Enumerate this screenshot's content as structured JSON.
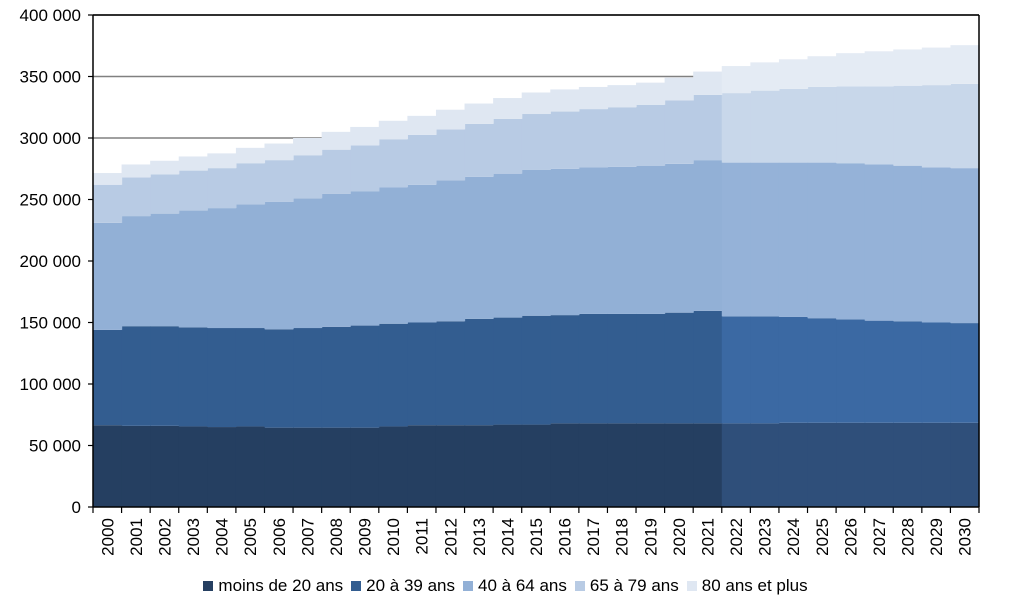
{
  "chart_data": {
    "type": "area",
    "stacked": true,
    "x": [
      "2000",
      "2001",
      "2002",
      "2003",
      "2004",
      "2005",
      "2006",
      "2007",
      "2008",
      "2009",
      "2010",
      "2011",
      "2012",
      "2013",
      "2014",
      "2015",
      "2016",
      "2017",
      "2018",
      "2019",
      "2020",
      "2021",
      "2022",
      "2023",
      "2024",
      "2025",
      "2026",
      "2027",
      "2028",
      "2029",
      "2030"
    ],
    "ylim": [
      0,
      400000
    ],
    "yticks": [
      0,
      50000,
      100000,
      150000,
      200000,
      250000,
      300000,
      350000,
      400000
    ],
    "ytick_labels": [
      "0",
      "50 000",
      "100 000",
      "150 000",
      "200 000",
      "250 000",
      "300 000",
      "350 000",
      "400 000"
    ],
    "projection_start": "2022",
    "legend_position": "bottom",
    "series": [
      {
        "name": "moins de 20 ans",
        "color": "#253f61",
        "projection_color": "#2f4f7a",
        "values": [
          66500,
          66000,
          66000,
          65500,
          65000,
          65500,
          64500,
          64500,
          64500,
          64500,
          65500,
          66500,
          66500,
          66500,
          67000,
          67000,
          68000,
          68000,
          68000,
          68000,
          68000,
          68000,
          68000,
          68000,
          68500,
          68500,
          68500,
          68500,
          68500,
          68500,
          68500
        ]
      },
      {
        "name": "20 à 39 ans",
        "color": "#335d90",
        "projection_color": "#3b69a3",
        "values": [
          77500,
          81000,
          81000,
          80500,
          80500,
          80000,
          80000,
          81000,
          82000,
          83000,
          83500,
          83500,
          84500,
          86500,
          87000,
          88500,
          88000,
          89000,
          89000,
          89000,
          90000,
          91500,
          87000,
          87000,
          86000,
          85000,
          84000,
          83000,
          82500,
          81500,
          81000
        ]
      },
      {
        "name": "40 à 64 ans",
        "color": "#92b0d6",
        "projection_color": "#95b2d8",
        "values": [
          87000,
          89500,
          91500,
          95000,
          97500,
          100500,
          103500,
          105500,
          108000,
          109000,
          111000,
          112000,
          114500,
          115500,
          117000,
          118500,
          119000,
          119000,
          119500,
          120500,
          121000,
          122500,
          125000,
          125000,
          125500,
          126500,
          127000,
          127000,
          126500,
          126000,
          126000
        ]
      },
      {
        "name": "65 à 79 ans",
        "color": "#b8cbe4",
        "projection_color": "#c8d7ea",
        "values": [
          31000,
          31500,
          32000,
          32500,
          32500,
          33500,
          34000,
          35000,
          36000,
          37500,
          39000,
          40500,
          41500,
          43000,
          44500,
          45500,
          46500,
          47500,
          48500,
          49500,
          51500,
          53000,
          56500,
          58500,
          60000,
          61500,
          62500,
          63500,
          65000,
          67000,
          68500
        ]
      },
      {
        "name": "80 ans et plus",
        "color": "#dfe7f2",
        "projection_color": "#e4ebf4",
        "values": [
          9500,
          10500,
          11000,
          11500,
          12000,
          12500,
          13500,
          14000,
          14500,
          15000,
          15000,
          15500,
          16000,
          16500,
          17000,
          17500,
          18000,
          18000,
          18000,
          18000,
          18500,
          19000,
          22000,
          23000,
          24000,
          25000,
          27000,
          28500,
          29500,
          30500,
          31500
        ]
      }
    ]
  }
}
